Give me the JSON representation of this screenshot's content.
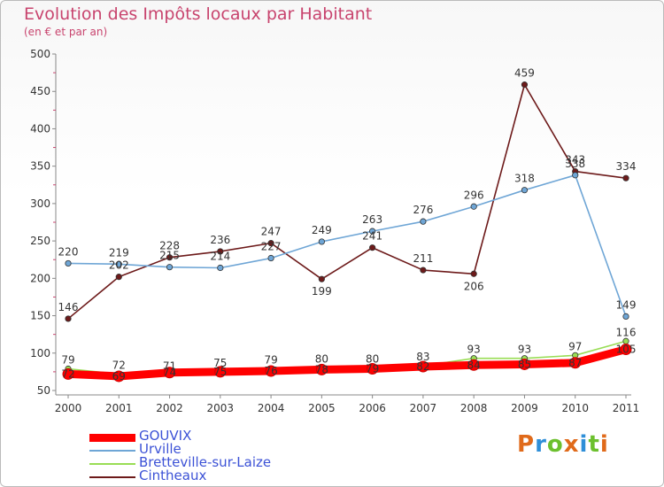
{
  "chart_data": {
    "type": "line",
    "title": "Evolution des Impôts locaux par Habitant",
    "subtitle": "(en € et par an)",
    "xlabel": "",
    "ylabel": "",
    "ylim": [
      50,
      500
    ],
    "yticks": [
      50,
      100,
      150,
      200,
      250,
      300,
      350,
      400,
      450,
      500
    ],
    "categories": [
      "2000",
      "2001",
      "2002",
      "2003",
      "2004",
      "2005",
      "2006",
      "2007",
      "2008",
      "2009",
      "2010",
      "2011"
    ],
    "grid": false,
    "legend_position": "bottom-left",
    "series": [
      {
        "name": "GOUVIX",
        "color": "#ff0000",
        "values": [
          72,
          69,
          74,
          75,
          76,
          78,
          79,
          82,
          84,
          85,
          87,
          105
        ]
      },
      {
        "name": "Urville",
        "color": "#6fa6d6",
        "values": [
          220,
          219,
          215,
          214,
          227,
          249,
          263,
          276,
          296,
          318,
          338,
          149
        ]
      },
      {
        "name": "Bretteville-sur-Laize",
        "color": "#99dd55",
        "values": [
          79,
          72,
          71,
          75,
          79,
          80,
          80,
          83,
          93,
          93,
          97,
          116
        ]
      },
      {
        "name": "Cintheaux",
        "color": "#6d1a1a",
        "values": [
          146,
          202,
          228,
          236,
          247,
          199,
          241,
          211,
          206,
          459,
          343,
          334
        ]
      }
    ]
  },
  "logo": {
    "text": "Proxiti",
    "colors": [
      "#e06a1a",
      "#2f8fd8",
      "#6cc02e",
      "#e06a1a",
      "#2f8fd8",
      "#6cc02e",
      "#e06a1a"
    ]
  }
}
